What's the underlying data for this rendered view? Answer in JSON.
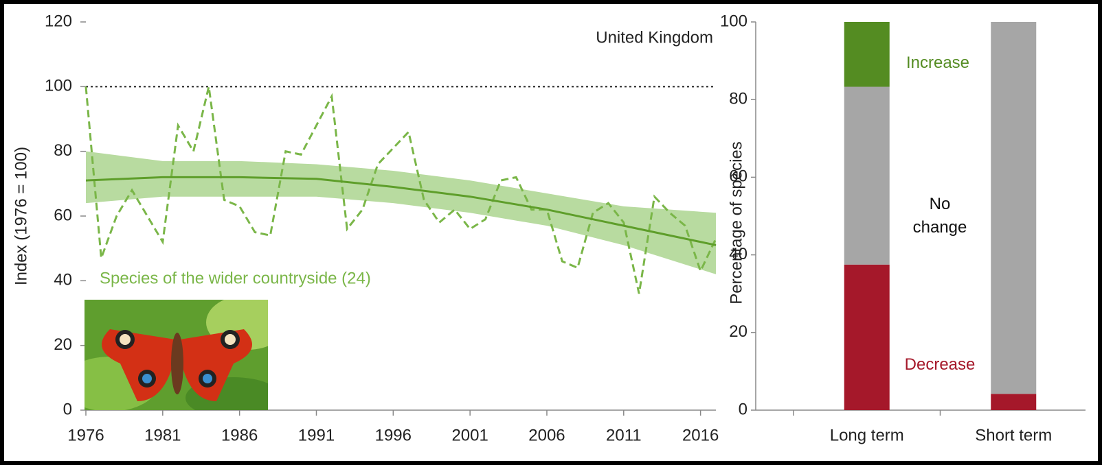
{
  "chart_data": [
    {
      "type": "line",
      "annotation": "United Kingdom",
      "y_label": "Index (1976 = 100)",
      "x": [
        1976,
        1977,
        1978,
        1979,
        1980,
        1981,
        1982,
        1983,
        1984,
        1985,
        1986,
        1987,
        1988,
        1989,
        1990,
        1991,
        1992,
        1993,
        1994,
        1995,
        1996,
        1997,
        1998,
        1999,
        2000,
        2001,
        2002,
        2003,
        2004,
        2005,
        2006,
        2007,
        2008,
        2009,
        2010,
        2011,
        2012,
        2013,
        2014,
        2015,
        2016,
        2017
      ],
      "xlim": [
        1976,
        2017
      ],
      "xticks": [
        1976,
        1981,
        1986,
        1991,
        1996,
        2001,
        2006,
        2011,
        2016
      ],
      "ylim": [
        0,
        120
      ],
      "yticks": [
        0,
        20,
        40,
        60,
        80,
        100,
        120
      ],
      "hline": 100,
      "series": [
        {
          "name": "Species of the wider countryside (24)",
          "color": "#7ab648",
          "style": "dashed",
          "values": [
            100,
            47,
            60,
            68,
            60,
            52,
            88,
            80,
            100,
            65,
            63,
            55,
            54,
            80,
            79,
            88,
            97,
            56,
            62,
            76,
            81,
            86,
            65,
            58,
            62,
            56,
            59,
            71,
            72,
            62,
            62,
            46,
            44,
            61,
            64,
            58,
            36,
            66,
            61,
            57,
            43,
            53
          ]
        },
        {
          "color": "#5e9e2a",
          "style": "solid",
          "x": [
            1976,
            1981,
            1986,
            1991,
            1996,
            2001,
            2006,
            2011,
            2017
          ],
          "values": [
            71,
            72,
            72,
            71.5,
            69,
            66,
            62,
            57,
            51
          ]
        }
      ],
      "band": {
        "color": "#b8dba0",
        "x": [
          1976,
          1981,
          1986,
          1991,
          1996,
          2001,
          2006,
          2011,
          2017
        ],
        "upper": [
          80,
          77,
          77,
          76,
          74,
          71,
          67,
          63,
          61
        ],
        "lower": [
          64,
          66,
          66,
          66,
          64,
          61,
          57,
          51,
          42
        ]
      }
    },
    {
      "type": "stacked_bar",
      "y_label": "Percentage of species",
      "categories": [
        "Long term",
        "Short term"
      ],
      "ylim": [
        0,
        100
      ],
      "yticks": [
        0,
        20,
        40,
        60,
        80,
        100
      ],
      "series": [
        {
          "name": "Decrease",
          "color": "#a5182a",
          "values": [
            37.5,
            4.2
          ]
        },
        {
          "name": "No change",
          "color": "#a6a6a6",
          "values": [
            45.8,
            95.8
          ]
        },
        {
          "name": "Increase",
          "color": "#548c22",
          "values": [
            16.7,
            0
          ]
        }
      ]
    }
  ]
}
